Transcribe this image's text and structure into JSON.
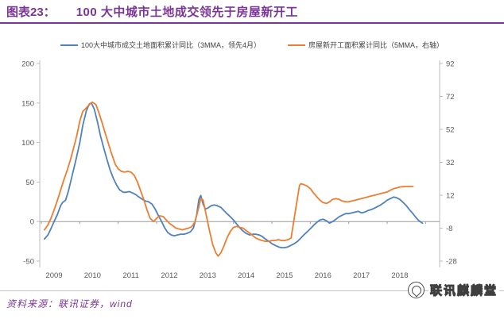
{
  "header": {
    "figure_label": "图表23：",
    "title": "100 大中城市土地成交领先于房屋新开工"
  },
  "legend": [
    {
      "label": "100大中城市成交土地面积累计同比（3MMA，领先4月）",
      "color": "#4f81bd"
    },
    {
      "label": "房屋新开工面积累计同比（5MMA，右轴）",
      "color": "#ed7d31"
    }
  ],
  "source": {
    "text": "资料来源：联讯证券，wind"
  },
  "logo": {
    "text": "联讯麒麟堂",
    "icon": "seal-circle-icon"
  },
  "colors": {
    "title_purple": "#7b3596",
    "land_series_blue": "#4f81bd",
    "newstart_series_orange": "#ed7d31",
    "axis_text": "#595959",
    "axis_line": "#bdbdbd",
    "zero_line": "#9a9a9a"
  },
  "chart_data": {
    "type": "line",
    "title": "100 大中城市土地成交领先于房屋新开工",
    "xlabel": "",
    "ylabel_left": "",
    "ylabel_right": "",
    "x_tick_labels": [
      "2009",
      "2010",
      "2011",
      "2012",
      "2013",
      "2014",
      "2015",
      "2016",
      "2017",
      "2018"
    ],
    "left_axis": {
      "ticks": [
        200,
        150,
        100,
        50,
        0,
        -50
      ],
      "range": [
        -50,
        200
      ]
    },
    "right_axis": {
      "ticks": [
        92,
        72,
        52,
        32,
        12,
        -8,
        -28
      ],
      "range": [
        -28,
        92
      ]
    },
    "grid": false,
    "legend_position": "top",
    "series": [
      {
        "name": "100大中城市成交土地面积累计同比（3MMA，领先4月）",
        "axis": "left",
        "color": "#4f81bd",
        "points": [
          [
            2009.08,
            -22
          ],
          [
            2009.17,
            -17
          ],
          [
            2009.25,
            -9
          ],
          [
            2009.33,
            0
          ],
          [
            2009.42,
            9
          ],
          [
            2009.5,
            20
          ],
          [
            2009.55,
            24
          ],
          [
            2009.63,
            27
          ],
          [
            2009.7,
            38
          ],
          [
            2009.8,
            58
          ],
          [
            2009.9,
            78
          ],
          [
            2010.0,
            100
          ],
          [
            2010.08,
            122
          ],
          [
            2010.17,
            140
          ],
          [
            2010.25,
            149
          ],
          [
            2010.3,
            150
          ],
          [
            2010.38,
            142
          ],
          [
            2010.46,
            126
          ],
          [
            2010.54,
            108
          ],
          [
            2010.63,
            92
          ],
          [
            2010.71,
            78
          ],
          [
            2010.79,
            65
          ],
          [
            2010.88,
            54
          ],
          [
            2010.96,
            46
          ],
          [
            2011.04,
            40
          ],
          [
            2011.13,
            37
          ],
          [
            2011.21,
            37
          ],
          [
            2011.29,
            38
          ],
          [
            2011.38,
            36
          ],
          [
            2011.46,
            34
          ],
          [
            2011.54,
            31
          ],
          [
            2011.63,
            28
          ],
          [
            2011.71,
            26
          ],
          [
            2011.79,
            25
          ],
          [
            2011.88,
            22
          ],
          [
            2011.96,
            16
          ],
          [
            2012.04,
            8
          ],
          [
            2012.13,
            0
          ],
          [
            2012.21,
            -8
          ],
          [
            2012.29,
            -14
          ],
          [
            2012.38,
            -17
          ],
          [
            2012.46,
            -18
          ],
          [
            2012.54,
            -17
          ],
          [
            2012.63,
            -16
          ],
          [
            2012.71,
            -16
          ],
          [
            2012.79,
            -15
          ],
          [
            2012.88,
            -13
          ],
          [
            2012.96,
            -8
          ],
          [
            2013.04,
            8
          ],
          [
            2013.1,
            28
          ],
          [
            2013.15,
            33
          ],
          [
            2013.21,
            22
          ],
          [
            2013.27,
            16
          ],
          [
            2013.33,
            17
          ],
          [
            2013.42,
            20
          ],
          [
            2013.5,
            21
          ],
          [
            2013.58,
            20
          ],
          [
            2013.67,
            18
          ],
          [
            2013.75,
            14
          ],
          [
            2013.83,
            10
          ],
          [
            2013.92,
            6
          ],
          [
            2014.0,
            2
          ],
          [
            2014.08,
            -3
          ],
          [
            2014.17,
            -8
          ],
          [
            2014.25,
            -12
          ],
          [
            2014.33,
            -15
          ],
          [
            2014.42,
            -17
          ],
          [
            2014.5,
            -16
          ],
          [
            2014.58,
            -16
          ],
          [
            2014.67,
            -17
          ],
          [
            2014.75,
            -19
          ],
          [
            2014.83,
            -22
          ],
          [
            2014.92,
            -25
          ],
          [
            2015.0,
            -28
          ],
          [
            2015.08,
            -30
          ],
          [
            2015.17,
            -32
          ],
          [
            2015.25,
            -33
          ],
          [
            2015.33,
            -33
          ],
          [
            2015.42,
            -32
          ],
          [
            2015.5,
            -30
          ],
          [
            2015.58,
            -28
          ],
          [
            2015.67,
            -25
          ],
          [
            2015.75,
            -21
          ],
          [
            2015.83,
            -17
          ],
          [
            2015.92,
            -13
          ],
          [
            2016.0,
            -9
          ],
          [
            2016.08,
            -5
          ],
          [
            2016.17,
            -1
          ],
          [
            2016.25,
            2
          ],
          [
            2016.33,
            3
          ],
          [
            2016.42,
            1
          ],
          [
            2016.5,
            -2
          ],
          [
            2016.58,
            0
          ],
          [
            2016.67,
            3
          ],
          [
            2016.75,
            6
          ],
          [
            2016.83,
            8
          ],
          [
            2016.92,
            10
          ],
          [
            2017.0,
            10
          ],
          [
            2017.08,
            11
          ],
          [
            2017.17,
            12
          ],
          [
            2017.25,
            13
          ],
          [
            2017.33,
            11
          ],
          [
            2017.42,
            12
          ],
          [
            2017.5,
            14
          ],
          [
            2017.58,
            15
          ],
          [
            2017.67,
            17
          ],
          [
            2017.75,
            19
          ],
          [
            2017.83,
            21
          ],
          [
            2017.92,
            24
          ],
          [
            2018.0,
            27
          ],
          [
            2018.08,
            29
          ],
          [
            2018.17,
            31
          ],
          [
            2018.25,
            30
          ],
          [
            2018.33,
            28
          ],
          [
            2018.42,
            24
          ],
          [
            2018.5,
            20
          ],
          [
            2018.58,
            15
          ],
          [
            2018.67,
            10
          ],
          [
            2018.75,
            5
          ],
          [
            2018.83,
            1
          ],
          [
            2018.92,
            -2
          ]
        ]
      },
      {
        "name": "房屋新开工面积累计同比（5MMA，右轴）",
        "axis": "right",
        "color": "#ed7d31",
        "points": [
          [
            2009.08,
            -9
          ],
          [
            2009.17,
            -6
          ],
          [
            2009.25,
            -2
          ],
          [
            2009.33,
            3
          ],
          [
            2009.42,
            9
          ],
          [
            2009.5,
            15
          ],
          [
            2009.58,
            21
          ],
          [
            2009.67,
            27
          ],
          [
            2009.75,
            33
          ],
          [
            2009.83,
            40
          ],
          [
            2009.92,
            48
          ],
          [
            2010.0,
            57
          ],
          [
            2010.08,
            63
          ],
          [
            2010.13,
            64
          ],
          [
            2010.21,
            66
          ],
          [
            2010.29,
            68
          ],
          [
            2010.33,
            68.5
          ],
          [
            2010.42,
            67
          ],
          [
            2010.5,
            62
          ],
          [
            2010.58,
            56
          ],
          [
            2010.67,
            49
          ],
          [
            2010.75,
            43
          ],
          [
            2010.83,
            37
          ],
          [
            2010.92,
            31
          ],
          [
            2011.0,
            28
          ],
          [
            2011.08,
            26.5
          ],
          [
            2011.17,
            26
          ],
          [
            2011.25,
            26.5
          ],
          [
            2011.33,
            26
          ],
          [
            2011.42,
            24
          ],
          [
            2011.5,
            20
          ],
          [
            2011.58,
            15
          ],
          [
            2011.67,
            9
          ],
          [
            2011.75,
            3
          ],
          [
            2011.83,
            -2
          ],
          [
            2011.92,
            -4
          ],
          [
            2012.0,
            -2
          ],
          [
            2012.08,
            -0.5
          ],
          [
            2012.17,
            -1
          ],
          [
            2012.25,
            -3
          ],
          [
            2012.33,
            -5
          ],
          [
            2012.42,
            -6.5
          ],
          [
            2012.5,
            -8
          ],
          [
            2012.58,
            -8.5
          ],
          [
            2012.67,
            -9
          ],
          [
            2012.75,
            -8.5
          ],
          [
            2012.83,
            -8
          ],
          [
            2012.92,
            -7
          ],
          [
            2013.0,
            -4
          ],
          [
            2013.08,
            3
          ],
          [
            2013.15,
            10
          ],
          [
            2013.21,
            9
          ],
          [
            2013.29,
            0
          ],
          [
            2013.38,
            -10
          ],
          [
            2013.46,
            -18
          ],
          [
            2013.54,
            -23
          ],
          [
            2013.6,
            -25
          ],
          [
            2013.67,
            -23
          ],
          [
            2013.75,
            -19
          ],
          [
            2013.83,
            -14
          ],
          [
            2013.92,
            -10
          ],
          [
            2014.0,
            -7.5
          ],
          [
            2014.08,
            -7
          ],
          [
            2014.17,
            -7.5
          ],
          [
            2014.25,
            -8
          ],
          [
            2014.33,
            -9.5
          ],
          [
            2014.42,
            -11
          ],
          [
            2014.5,
            -12.5
          ],
          [
            2014.58,
            -14
          ],
          [
            2014.67,
            -15
          ],
          [
            2014.75,
            -15.5
          ],
          [
            2014.83,
            -16
          ],
          [
            2014.92,
            -16
          ],
          [
            2015.0,
            -15.5
          ],
          [
            2015.08,
            -15.5
          ],
          [
            2015.17,
            -15
          ],
          [
            2015.25,
            -15.5
          ],
          [
            2015.33,
            -15.5
          ],
          [
            2015.42,
            -15
          ],
          [
            2015.5,
            -14
          ],
          [
            2015.58,
            -2
          ],
          [
            2015.67,
            11
          ],
          [
            2015.72,
            18
          ],
          [
            2015.75,
            19
          ],
          [
            2015.83,
            18.5
          ],
          [
            2015.92,
            17.5
          ],
          [
            2016.0,
            16
          ],
          [
            2016.08,
            13.5
          ],
          [
            2016.17,
            11
          ],
          [
            2016.25,
            9
          ],
          [
            2016.33,
            7.5
          ],
          [
            2016.42,
            7
          ],
          [
            2016.5,
            8
          ],
          [
            2016.58,
            9.5
          ],
          [
            2016.67,
            10
          ],
          [
            2016.75,
            9.5
          ],
          [
            2016.83,
            8.5
          ],
          [
            2016.92,
            8
          ],
          [
            2017.0,
            8
          ],
          [
            2017.08,
            8.5
          ],
          [
            2017.17,
            9
          ],
          [
            2017.25,
            9.5
          ],
          [
            2017.33,
            10
          ],
          [
            2017.42,
            10.5
          ],
          [
            2017.5,
            11
          ],
          [
            2017.58,
            11.5
          ],
          [
            2017.67,
            12
          ],
          [
            2017.75,
            12.5
          ],
          [
            2017.83,
            13
          ],
          [
            2017.92,
            13.5
          ],
          [
            2018.0,
            14
          ],
          [
            2018.08,
            15
          ],
          [
            2018.17,
            16
          ],
          [
            2018.25,
            16.5
          ],
          [
            2018.33,
            17
          ],
          [
            2018.42,
            17.2
          ],
          [
            2018.5,
            17.3
          ],
          [
            2018.58,
            17.3
          ],
          [
            2018.67,
            17.3
          ]
        ]
      }
    ]
  }
}
